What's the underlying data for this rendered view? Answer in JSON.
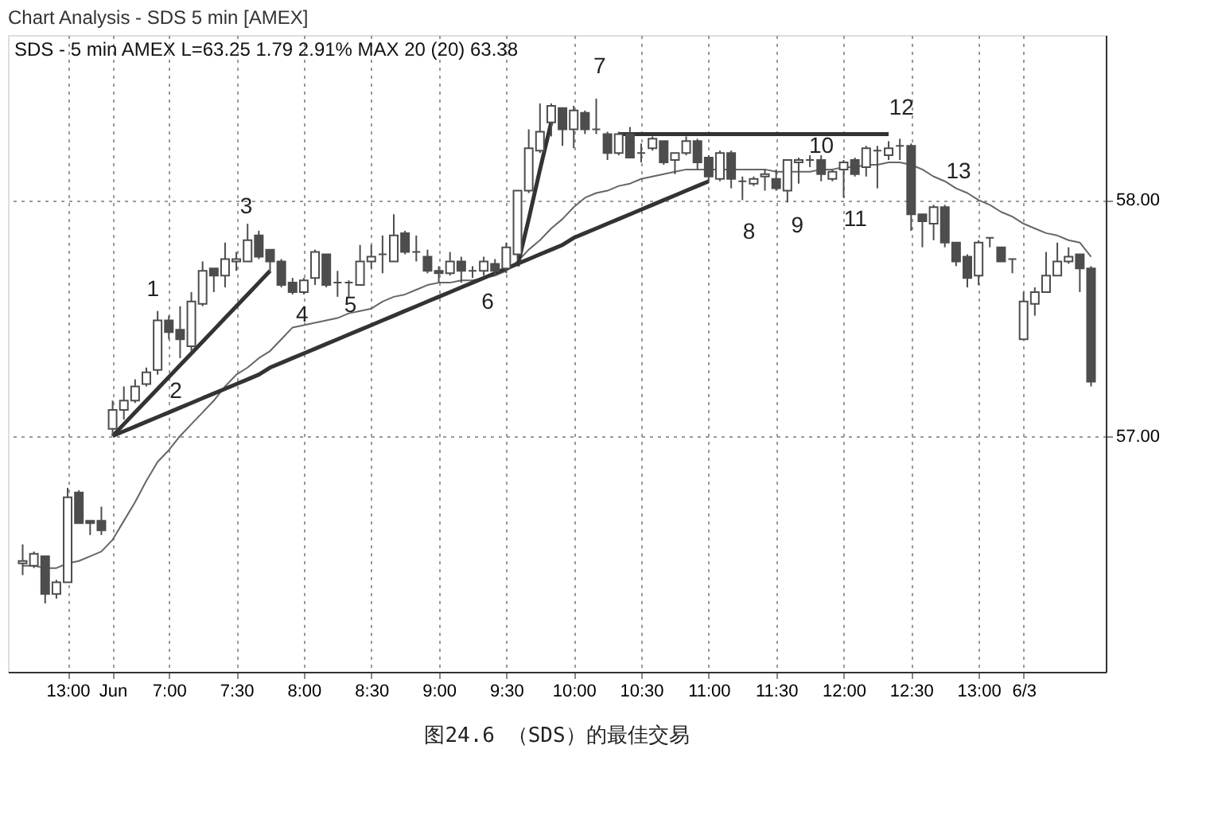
{
  "chart_data": {
    "type": "candlestick",
    "title": "Chart Analysis - SDS 5 min [AMEX]",
    "categories": [
      null,
      null,
      null,
      null,
      "13:00",
      null,
      null,
      null,
      "Jun",
      null,
      null,
      null,
      null,
      "7:00",
      null,
      null,
      null,
      null,
      null,
      "7:30",
      null,
      null,
      null,
      null,
      null,
      "8:00",
      null,
      null,
      null,
      null,
      null,
      "8:30",
      null,
      null,
      null,
      null,
      null,
      "9:00",
      null,
      null,
      null,
      null,
      null,
      "9:30",
      null,
      null,
      null,
      null,
      null,
      "10:00",
      null,
      null,
      null,
      null,
      null,
      "10:30",
      null,
      null,
      null,
      null,
      null,
      "11:00",
      null,
      null,
      null,
      null,
      null,
      "11:30",
      null,
      null,
      null,
      null,
      null,
      "12:00",
      null,
      null,
      null,
      null,
      null,
      "12:30",
      null,
      null,
      null,
      null,
      null,
      "13:00",
      null,
      null,
      null,
      "6/3",
      null,
      null,
      null,
      null,
      null,
      null
    ],
    "ohlc": [
      [
        56.46,
        56.54,
        56.41,
        56.47
      ],
      [
        56.45,
        56.51,
        56.44,
        56.5
      ],
      [
        56.49,
        56.49,
        56.29,
        56.33
      ],
      [
        56.33,
        56.39,
        56.31,
        56.38
      ],
      [
        56.38,
        56.78,
        56.38,
        56.74
      ],
      [
        56.76,
        56.77,
        56.63,
        56.63
      ],
      [
        56.64,
        56.64,
        56.58,
        56.63
      ],
      [
        56.64,
        56.7,
        56.58,
        56.6
      ],
      [
        57.03,
        57.15,
        57.0,
        57.11
      ],
      [
        57.11,
        57.21,
        57.07,
        57.15
      ],
      [
        57.15,
        57.24,
        57.14,
        57.21
      ],
      [
        57.22,
        57.29,
        57.21,
        57.27
      ],
      [
        57.28,
        57.53,
        57.26,
        57.49
      ],
      [
        57.49,
        57.51,
        57.41,
        57.44
      ],
      [
        57.45,
        57.55,
        57.33,
        57.41
      ],
      [
        57.38,
        57.61,
        57.36,
        57.57
      ],
      [
        57.56,
        57.74,
        57.55,
        57.7
      ],
      [
        57.71,
        57.71,
        57.61,
        57.68
      ],
      [
        57.68,
        57.82,
        57.63,
        57.75
      ],
      [
        57.74,
        57.78,
        57.7,
        57.75
      ],
      [
        57.74,
        57.9,
        57.74,
        57.83
      ],
      [
        57.85,
        57.87,
        57.75,
        57.76
      ],
      [
        57.79,
        57.79,
        57.69,
        57.74
      ],
      [
        57.74,
        57.75,
        57.63,
        57.64
      ],
      [
        57.65,
        57.67,
        57.6,
        57.61
      ],
      [
        57.61,
        57.67,
        57.6,
        57.66
      ],
      [
        57.67,
        57.79,
        57.64,
        57.78
      ],
      [
        57.77,
        57.77,
        57.63,
        57.64
      ],
      [
        57.65,
        57.7,
        57.59,
        57.65
      ],
      [
        57.65,
        57.66,
        57.59,
        57.65
      ],
      [
        57.64,
        57.81,
        57.64,
        57.74
      ],
      [
        57.74,
        57.81,
        57.71,
        57.76
      ],
      [
        57.77,
        57.85,
        57.69,
        57.77
      ],
      [
        57.74,
        57.94,
        57.74,
        57.85
      ],
      [
        57.86,
        57.87,
        57.77,
        57.78
      ],
      [
        57.78,
        57.85,
        57.74,
        57.78
      ],
      [
        57.76,
        57.79,
        57.69,
        57.7
      ],
      [
        57.7,
        57.72,
        57.65,
        57.69
      ],
      [
        57.69,
        57.78,
        57.68,
        57.74
      ],
      [
        57.74,
        57.76,
        57.65,
        57.7
      ],
      [
        57.7,
        57.72,
        57.67,
        57.7
      ],
      [
        57.7,
        57.76,
        57.68,
        57.74
      ],
      [
        57.73,
        57.75,
        57.68,
        57.7
      ],
      [
        57.71,
        57.82,
        57.69,
        57.8
      ],
      [
        57.77,
        58.04,
        57.75,
        58.04
      ],
      [
        58.04,
        58.3,
        58.03,
        58.22
      ],
      [
        58.21,
        58.41,
        58.2,
        58.29
      ],
      [
        58.33,
        58.41,
        58.27,
        58.4
      ],
      [
        58.39,
        58.39,
        58.23,
        58.3
      ],
      [
        58.3,
        58.4,
        58.22,
        58.38
      ],
      [
        58.37,
        58.38,
        58.28,
        58.3
      ],
      [
        58.3,
        58.43,
        58.28,
        58.3
      ],
      [
        58.28,
        58.29,
        58.17,
        58.2
      ],
      [
        58.2,
        58.29,
        58.19,
        58.28
      ],
      [
        58.28,
        58.31,
        58.18,
        58.18
      ],
      [
        58.2,
        58.24,
        58.16,
        58.2
      ],
      [
        58.22,
        58.27,
        58.21,
        58.26
      ],
      [
        58.25,
        58.25,
        58.15,
        58.16
      ],
      [
        58.17,
        58.2,
        58.11,
        58.2
      ],
      [
        58.2,
        58.27,
        58.19,
        58.25
      ],
      [
        58.25,
        58.26,
        58.13,
        58.16
      ],
      [
        58.18,
        58.19,
        58.08,
        58.1
      ],
      [
        58.09,
        58.21,
        58.08,
        58.2
      ],
      [
        58.2,
        58.21,
        58.05,
        58.09
      ],
      [
        58.08,
        58.1,
        58.0,
        58.08
      ],
      [
        58.07,
        58.1,
        58.06,
        58.09
      ],
      [
        58.1,
        58.13,
        58.04,
        58.11
      ],
      [
        58.09,
        58.13,
        58.04,
        58.05
      ],
      [
        58.04,
        58.17,
        57.99,
        58.17
      ],
      [
        58.16,
        58.18,
        58.07,
        58.17
      ],
      [
        58.17,
        58.19,
        58.14,
        58.17
      ],
      [
        58.17,
        58.19,
        58.08,
        58.11
      ],
      [
        58.09,
        58.13,
        58.08,
        58.12
      ],
      [
        58.13,
        58.17,
        58.01,
        58.16
      ],
      [
        58.17,
        58.18,
        58.1,
        58.11
      ],
      [
        58.14,
        58.23,
        58.1,
        58.22
      ],
      [
        58.21,
        58.23,
        58.05,
        58.21
      ],
      [
        58.19,
        58.25,
        58.17,
        58.22
      ],
      [
        58.23,
        58.26,
        58.17,
        58.23
      ],
      [
        58.23,
        58.24,
        57.87,
        57.94
      ],
      [
        57.94,
        57.94,
        57.8,
        57.91
      ],
      [
        57.9,
        57.98,
        57.83,
        57.97
      ],
      [
        57.97,
        57.98,
        57.8,
        57.82
      ],
      [
        57.82,
        57.82,
        57.72,
        57.74
      ],
      [
        57.76,
        57.77,
        57.63,
        57.67
      ],
      [
        57.68,
        57.83,
        57.64,
        57.82
      ],
      [
        57.84,
        57.84,
        57.8,
        57.84
      ],
      [
        57.8,
        57.8,
        57.74,
        57.74
      ],
      [
        57.75,
        57.75,
        57.69,
        57.75
      ],
      [
        57.41,
        57.61,
        57.41,
        57.57
      ],
      [
        57.56,
        57.63,
        57.51,
        57.61
      ],
      [
        57.61,
        57.78,
        57.61,
        57.68
      ],
      [
        57.68,
        57.82,
        57.68,
        57.74
      ],
      [
        57.74,
        57.8,
        57.73,
        57.76
      ],
      [
        57.77,
        57.77,
        57.61,
        57.71
      ],
      [
        57.71,
        57.72,
        57.21,
        57.23
      ]
    ],
    "color": "#4d4d4d",
    "series": [
      {
        "type": "line",
        "color": "#666666",
        "values": [
          56.45,
          56.45,
          56.44,
          56.44,
          56.46,
          56.47,
          56.49,
          56.51,
          56.56,
          56.64,
          56.72,
          56.81,
          56.89,
          56.94,
          57.0,
          57.05,
          57.1,
          57.15,
          57.21,
          57.26,
          57.29,
          57.33,
          57.36,
          57.41,
          57.46,
          57.47,
          57.48,
          57.49,
          57.5,
          57.52,
          57.53,
          57.54,
          57.57,
          57.59,
          57.6,
          57.62,
          57.64,
          57.65,
          57.65,
          57.66,
          57.66,
          57.67,
          57.68,
          57.7,
          57.74,
          57.79,
          57.83,
          57.88,
          57.92,
          57.97,
          58.01,
          58.03,
          58.04,
          58.06,
          58.07,
          58.09,
          58.1,
          58.11,
          58.12,
          58.13,
          58.13,
          58.13,
          58.13,
          58.13,
          58.13,
          58.13,
          58.13,
          58.12,
          58.12,
          58.12,
          58.12,
          58.13,
          58.13,
          58.14,
          58.14,
          58.15,
          58.15,
          58.16,
          58.16,
          58.15,
          58.13,
          58.1,
          58.08,
          58.05,
          58.03,
          58.0,
          57.98,
          57.95,
          57.93,
          57.9,
          57.88,
          57.86,
          57.85,
          57.83,
          57.82,
          57.76
        ]
      },
      {
        "type": "line",
        "color": "#333333",
        "values": [
          null,
          null,
          null,
          null,
          null,
          null,
          null,
          null,
          57.0,
          57.05,
          57.1,
          57.15,
          57.2,
          57.25,
          57.3,
          57.35,
          57.4,
          57.45,
          57.5,
          57.55,
          57.6,
          57.65,
          57.7,
          null,
          null,
          null,
          null,
          null,
          null,
          null,
          null,
          null,
          null,
          null,
          null,
          null,
          null,
          null,
          null,
          null,
          null,
          null,
          null,
          null,
          null,
          null,
          null,
          null,
          null,
          null,
          null,
          null,
          null,
          null,
          null,
          null,
          null,
          null,
          null,
          null,
          null,
          null,
          null,
          null,
          null,
          null,
          null,
          null,
          null,
          null,
          null,
          null,
          null,
          null,
          null,
          null,
          null,
          null,
          null,
          null,
          null,
          null,
          null,
          null,
          null,
          null,
          null,
          null,
          null,
          null,
          null,
          null,
          null,
          null,
          null,
          null
        ]
      },
      {
        "type": "line",
        "color": "#333333",
        "values": [
          null,
          null,
          null,
          null,
          null,
          null,
          null,
          null,
          57.0,
          57.02,
          57.04,
          57.06,
          57.08,
          57.1,
          57.12,
          57.14,
          57.16,
          57.18,
          57.2,
          57.22,
          57.24,
          57.26,
          57.29,
          57.31,
          57.33,
          57.35,
          57.37,
          57.39,
          57.41,
          57.43,
          57.45,
          57.47,
          57.49,
          57.51,
          57.53,
          57.55,
          57.57,
          57.59,
          57.61,
          57.63,
          57.65,
          57.67,
          57.69,
          57.71,
          57.73,
          57.75,
          57.77,
          57.79,
          57.81,
          57.84,
          57.86,
          57.88,
          57.9,
          57.92,
          57.94,
          57.96,
          57.98,
          58.0,
          58.02,
          58.04,
          58.06,
          58.08,
          null,
          null,
          null,
          null,
          null,
          null,
          null,
          null,
          null,
          null,
          null,
          null,
          null,
          null,
          null,
          null,
          null,
          null,
          null,
          null,
          null,
          null,
          null,
          null,
          null,
          null,
          null,
          null,
          null,
          null,
          null,
          null,
          null,
          null
        ]
      },
      {
        "type": "line",
        "color": "#333333",
        "values": [
          null,
          null,
          null,
          null,
          null,
          null,
          null,
          null,
          null,
          null,
          null,
          null,
          null,
          null,
          null,
          null,
          null,
          null,
          null,
          null,
          null,
          null,
          null,
          null,
          null,
          null,
          null,
          null,
          null,
          null,
          null,
          null,
          null,
          null,
          null,
          null,
          null,
          null,
          null,
          null,
          null,
          null,
          null,
          null,
          57.72,
          57.92,
          58.13,
          58.33,
          null,
          null,
          null,
          null,
          null,
          null,
          null,
          null,
          null,
          null,
          null,
          null,
          null,
          null,
          null,
          null,
          null,
          null,
          null,
          null,
          null,
          null,
          null,
          null,
          null,
          null,
          null,
          null,
          null,
          null,
          null,
          null,
          null,
          null,
          null,
          null,
          null,
          null,
          null,
          null,
          null,
          null,
          null,
          null,
          null,
          null,
          null,
          null
        ]
      },
      {
        "type": "line",
        "color": "#333333",
        "values": [
          null,
          null,
          null,
          null,
          null,
          null,
          null,
          null,
          null,
          null,
          null,
          null,
          null,
          null,
          null,
          null,
          null,
          null,
          null,
          null,
          null,
          null,
          null,
          null,
          null,
          null,
          null,
          null,
          null,
          null,
          null,
          null,
          null,
          null,
          null,
          null,
          null,
          null,
          null,
          null,
          null,
          null,
          null,
          null,
          null,
          null,
          null,
          null,
          null,
          null,
          null,
          null,
          null,
          58.28,
          58.28,
          58.28,
          58.28,
          58.28,
          58.28,
          58.28,
          58.28,
          58.28,
          58.28,
          58.28,
          58.28,
          58.28,
          58.28,
          58.28,
          58.28,
          58.28,
          58.28,
          58.28,
          58.28,
          58.28,
          58.28,
          58.28,
          58.28,
          58.28,
          null,
          null,
          null,
          null,
          null,
          null,
          null,
          null,
          null,
          null,
          null,
          null,
          null,
          null,
          null,
          null,
          null,
          null
        ]
      }
    ],
    "annotations": [
      "SDS - 5 min AMEX  L=63.25  1.79  2.91%  MAX 20 (20)  63.38",
      "1",
      "2",
      "3",
      "4",
      "5",
      "6",
      "7",
      "8",
      "9",
      "10",
      "11",
      "12",
      "13",
      "图24.6 （SDS）的最佳交易"
    ],
    "ylim": [
      56.0,
      58.7
    ],
    "yticks": [
      {
        "value": 57,
        "label": "57.00"
      },
      {
        "value": 58,
        "label": "58.00"
      }
    ],
    "grid": true
  }
}
